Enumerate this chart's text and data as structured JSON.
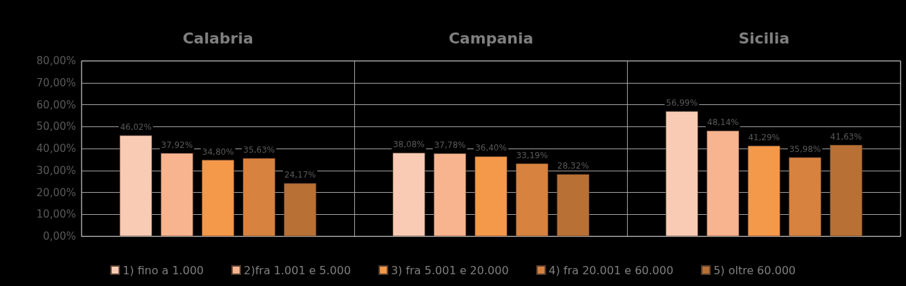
{
  "chart_data": {
    "type": "bar",
    "categories": [
      "Calabria",
      "Campania",
      "Sicilia"
    ],
    "series": [
      {
        "name": "1) fino a 1.000",
        "color": "#f9cbb4",
        "values": [
          46.02,
          38.08,
          56.99
        ],
        "value_labels": [
          "46,02%",
          "38,08%",
          "56,99%"
        ]
      },
      {
        "name": "2)fra 1.001 e 5.000",
        "color": "#f7b48f",
        "values": [
          37.92,
          37.78,
          48.14
        ],
        "value_labels": [
          "37,92%",
          "37,78%",
          "48,14%"
        ]
      },
      {
        "name": "3) fra 5.001 e 20.000",
        "color": "#f4984a",
        "values": [
          34.8,
          36.4,
          41.29
        ],
        "value_labels": [
          "34,80%",
          "36,40%",
          "41,29%"
        ]
      },
      {
        "name": "4) fra 20.001 e 60.000",
        "color": "#d8823f",
        "values": [
          35.63,
          33.19,
          35.98
        ],
        "value_labels": [
          "35,63%",
          "33,19%",
          "35,98%"
        ]
      },
      {
        "name": "5) oltre 60.000",
        "color": "#b87034",
        "values": [
          24.17,
          28.32,
          41.63
        ],
        "value_labels": [
          "24,17%",
          "28,32%",
          "41,63%"
        ]
      }
    ],
    "ylim": [
      0,
      80
    ],
    "yticks": [
      {
        "value": 0,
        "label": "0,00%"
      },
      {
        "value": 10,
        "label": "10,00%"
      },
      {
        "value": 20,
        "label": "20,00%"
      },
      {
        "value": 30,
        "label": "30,00%"
      },
      {
        "value": 40,
        "label": "40,00%"
      },
      {
        "value": 50,
        "label": "50,00%"
      },
      {
        "value": 60,
        "label": "60,00%"
      },
      {
        "value": 70,
        "label": "70,00%"
      },
      {
        "value": 80,
        "label": "80,00%"
      }
    ],
    "grid": true,
    "legend": "bottom"
  }
}
